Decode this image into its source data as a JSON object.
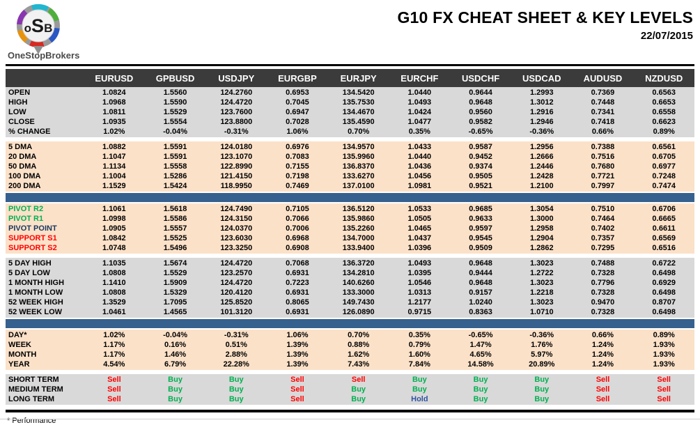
{
  "header": {
    "logo": {
      "m1": "o",
      "m2": "S",
      "m3": "B",
      "name": "OneStopBrokers"
    },
    "title": "G10 FX CHEAT SHEET & KEY LEVELS",
    "date": "22/07/2015"
  },
  "footnote": "* Performance",
  "colors": {
    "green": "#00b050",
    "red": "#ff0000",
    "navy": "#17375e",
    "signal": {
      "Buy": "#00b050",
      "Sell": "#ff0000",
      "Hold": "#2e53a0"
    }
  },
  "chart_data": {
    "type": "table",
    "title": "G10 FX CHEAT SHEET & KEY LEVELS",
    "date": "22/07/2015",
    "columns": [
      "EURUSD",
      "GPBUSD",
      "USDJPY",
      "EURGBP",
      "EURJPY",
      "EURCHF",
      "USDCHF",
      "USDCAD",
      "AUDUSD",
      "NZDUSD"
    ],
    "sections": [
      {
        "name": "ohlc",
        "style": "gray",
        "after": "gap",
        "rows": [
          {
            "label": "OPEN",
            "values": [
              "1.0824",
              "1.5560",
              "124.2760",
              "0.6953",
              "134.5420",
              "1.0440",
              "0.9644",
              "1.2993",
              "0.7369",
              "0.6563"
            ]
          },
          {
            "label": "HIGH",
            "values": [
              "1.0968",
              "1.5590",
              "124.4720",
              "0.7045",
              "135.7530",
              "1.0493",
              "0.9648",
              "1.3012",
              "0.7448",
              "0.6653"
            ]
          },
          {
            "label": "LOW",
            "values": [
              "1.0811",
              "1.5529",
              "123.7600",
              "0.6947",
              "134.4670",
              "1.0424",
              "0.9560",
              "1.2916",
              "0.7341",
              "0.6558"
            ]
          },
          {
            "label": "CLOSE",
            "values": [
              "1.0935",
              "1.5554",
              "123.8800",
              "0.7028",
              "135.4590",
              "1.0477",
              "0.9582",
              "1.2946",
              "0.7418",
              "0.6623"
            ]
          },
          {
            "label": "% CHANGE",
            "values": [
              "1.02%",
              "-0.04%",
              "-0.31%",
              "1.06%",
              "0.70%",
              "0.35%",
              "-0.65%",
              "-0.36%",
              "0.66%",
              "0.89%"
            ]
          }
        ]
      },
      {
        "name": "dma",
        "style": "peach",
        "after": "blue",
        "rows": [
          {
            "label": "5 DMA",
            "values": [
              "1.0882",
              "1.5591",
              "124.0180",
              "0.6976",
              "134.9570",
              "1.0433",
              "0.9587",
              "1.2956",
              "0.7388",
              "0.6561"
            ]
          },
          {
            "label": "20 DMA",
            "values": [
              "1.1047",
              "1.5591",
              "123.1070",
              "0.7083",
              "135.9960",
              "1.0440",
              "0.9452",
              "1.2666",
              "0.7516",
              "0.6705"
            ]
          },
          {
            "label": "50 DMA",
            "values": [
              "1.1134",
              "1.5558",
              "122.8990",
              "0.7155",
              "136.8370",
              "1.0436",
              "0.9374",
              "1.2446",
              "0.7680",
              "0.6977"
            ]
          },
          {
            "label": "100 DMA",
            "values": [
              "1.1004",
              "1.5286",
              "121.4150",
              "0.7198",
              "133.6270",
              "1.0456",
              "0.9505",
              "1.2428",
              "0.7721",
              "0.7248"
            ]
          },
          {
            "label": "200 DMA",
            "values": [
              "1.1529",
              "1.5424",
              "118.9950",
              "0.7469",
              "137.0100",
              "1.0981",
              "0.9521",
              "1.2100",
              "0.7997",
              "0.7474"
            ]
          }
        ]
      },
      {
        "name": "pivots",
        "style": "peach",
        "after": "gap",
        "rows": [
          {
            "label": "PIVOT R2",
            "label_color": "green",
            "values": [
              "1.1061",
              "1.5618",
              "124.7490",
              "0.7105",
              "136.5120",
              "1.0533",
              "0.9685",
              "1.3054",
              "0.7510",
              "0.6706"
            ]
          },
          {
            "label": "PIVOT R1",
            "label_color": "green",
            "values": [
              "1.0998",
              "1.5586",
              "124.3150",
              "0.7066",
              "135.9860",
              "1.0505",
              "0.9633",
              "1.3000",
              "0.7464",
              "0.6665"
            ]
          },
          {
            "label": "PIVOT POINT",
            "label_color": "navy",
            "values": [
              "1.0905",
              "1.5557",
              "124.0370",
              "0.7006",
              "135.2260",
              "1.0465",
              "0.9597",
              "1.2958",
              "0.7402",
              "0.6611"
            ]
          },
          {
            "label": "SUPPORT S1",
            "label_color": "red",
            "values": [
              "1.0842",
              "1.5525",
              "123.6030",
              "0.6968",
              "134.7000",
              "1.0437",
              "0.9545",
              "1.2904",
              "0.7357",
              "0.6569"
            ]
          },
          {
            "label": "SUPPORT S2",
            "label_color": "red",
            "values": [
              "1.0748",
              "1.5496",
              "123.3250",
              "0.6908",
              "133.9400",
              "1.0396",
              "0.9509",
              "1.2862",
              "0.7295",
              "0.6516"
            ]
          }
        ]
      },
      {
        "name": "ranges",
        "style": "gray",
        "after": "blue",
        "rows": [
          {
            "label": "5 DAY HIGH",
            "values": [
              "1.1035",
              "1.5674",
              "124.4720",
              "0.7068",
              "136.3720",
              "1.0493",
              "0.9648",
              "1.3023",
              "0.7488",
              "0.6722"
            ]
          },
          {
            "label": "5 DAY LOW",
            "values": [
              "1.0808",
              "1.5529",
              "123.2570",
              "0.6931",
              "134.2810",
              "1.0395",
              "0.9444",
              "1.2722",
              "0.7328",
              "0.6498"
            ]
          },
          {
            "label": "1 MONTH HIGH",
            "values": [
              "1.1410",
              "1.5909",
              "124.4720",
              "0.7223",
              "140.6260",
              "1.0546",
              "0.9648",
              "1.3023",
              "0.7796",
              "0.6929"
            ]
          },
          {
            "label": "1 MONTH LOW",
            "values": [
              "1.0808",
              "1.5329",
              "120.4120",
              "0.6931",
              "133.3000",
              "1.0313",
              "0.9157",
              "1.2218",
              "0.7328",
              "0.6498"
            ]
          },
          {
            "label": "52 WEEK HIGH",
            "values": [
              "1.3529",
              "1.7095",
              "125.8520",
              "0.8065",
              "149.7430",
              "1.2177",
              "1.0240",
              "1.3023",
              "0.9470",
              "0.8707"
            ]
          },
          {
            "label": "52 WEEK LOW",
            "values": [
              "1.0461",
              "1.4565",
              "101.3120",
              "0.6931",
              "126.0890",
              "0.9715",
              "0.8363",
              "1.0710",
              "0.7328",
              "0.6498"
            ]
          }
        ]
      },
      {
        "name": "performance",
        "style": "peach",
        "after": "gap",
        "rows": [
          {
            "label": "DAY*",
            "values": [
              "1.02%",
              "-0.04%",
              "-0.31%",
              "1.06%",
              "0.70%",
              "0.35%",
              "-0.65%",
              "-0.36%",
              "0.66%",
              "0.89%"
            ]
          },
          {
            "label": "WEEK",
            "values": [
              "1.17%",
              "0.16%",
              "0.51%",
              "1.39%",
              "0.88%",
              "0.79%",
              "1.47%",
              "1.76%",
              "1.24%",
              "1.93%"
            ]
          },
          {
            "label": "MONTH",
            "values": [
              "1.17%",
              "1.46%",
              "2.88%",
              "1.39%",
              "1.62%",
              "1.60%",
              "4.65%",
              "5.97%",
              "1.24%",
              "1.93%"
            ]
          },
          {
            "label": "YEAR",
            "values": [
              "4.54%",
              "6.79%",
              "22.28%",
              "1.39%",
              "7.43%",
              "7.84%",
              "14.58%",
              "20.89%",
              "1.24%",
              "1.93%"
            ]
          }
        ]
      },
      {
        "name": "signals",
        "style": "gray",
        "after": null,
        "color_by_value": true,
        "rows": [
          {
            "label": "SHORT TERM",
            "values": [
              "Sell",
              "Buy",
              "Buy",
              "Sell",
              "Sell",
              "Buy",
              "Buy",
              "Buy",
              "Sell",
              "Sell"
            ]
          },
          {
            "label": "MEDIUM TERM",
            "values": [
              "Sell",
              "Buy",
              "Buy",
              "Sell",
              "Buy",
              "Buy",
              "Buy",
              "Buy",
              "Sell",
              "Sell"
            ]
          },
          {
            "label": "LONG TERM",
            "values": [
              "Sell",
              "Buy",
              "Buy",
              "Sell",
              "Buy",
              "Hold",
              "Buy",
              "Buy",
              "Sell",
              "Sell"
            ]
          }
        ]
      }
    ]
  }
}
